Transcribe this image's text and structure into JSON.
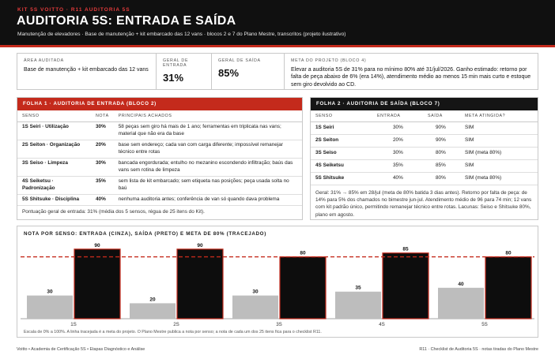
{
  "header": {
    "kicker_left": "KIT 5S VOITTO",
    "kicker_right": "R11 AUDITORIA 5S",
    "title": "AUDITORIA 5S: ENTRADA E SAÍDA",
    "subtitle": "Manutenção de elevadores · Base de manutenção + kit embarcado das 12 vans · blocos 2 e 7 do Plano Mestre, transcritos (projeto ilustrativo)"
  },
  "info": {
    "area_label": "ÁREA AUDITADA",
    "area_value": "Base de manutenção + kit embarcado das 12 vans",
    "entry_label": "GERAL DE ENTRADA",
    "entry_value": "31%",
    "exit_label": "GERAL DE SAÍDA",
    "exit_value": "85%",
    "goal_label": "META DO PROJETO (BLOCO 4)",
    "goal_value": "Elevar a auditoria 5S de 31% para no mínimo 80% até 31/jul/2026. Ganho estimado: retorno por falta de peça abaixo de 6% (era 14%), atendimento médio ao menos 15 min mais curto e estoque sem giro devolvido ao CD."
  },
  "sheet1": {
    "title": "FOLHA 1 · AUDITORIA DE ENTRADA (BLOCO 2)",
    "headers": [
      "SENSO",
      "NOTA",
      "PRINCIPAIS ACHADOS"
    ],
    "rows": [
      {
        "senso": "1S Seiri · Utilização",
        "nota": "30%",
        "achado": "58 peças sem giro há mais de 1 ano; ferramentas em triplicata nas vans; material que não era da base"
      },
      {
        "senso": "2S Seiton · Organização",
        "nota": "20%",
        "achado": "base sem endereço; cada van com carga diferente; impossível remanejar técnico entre rotas"
      },
      {
        "senso": "3S Seiso · Limpeza",
        "nota": "30%",
        "achado": "bancada engordurada; entulho no mezanino escondendo infiltração; baús das vans sem rotina de limpeza"
      },
      {
        "senso": "4S Seiketsu · Padronização",
        "nota": "35%",
        "achado": "sem lista de kit embarcado; sem etiqueta nas posições; peça usada solta no baú"
      },
      {
        "senso": "5S Shitsuke · Disciplina",
        "nota": "40%",
        "achado": "nenhuma auditoria antes; conferência de van só quando dava problema"
      }
    ],
    "note": "Pontuação geral de entrada: 31% (média dos 5 sensos, régua de 25 itens do Kit)."
  },
  "sheet2": {
    "title": "FOLHA 2 · AUDITORIA DE SAÍDA (BLOCO 7)",
    "headers": [
      "SENSO",
      "ENTRADA",
      "SAÍDA",
      "META ATINGIDA?"
    ],
    "rows": [
      {
        "senso": "1S Seiri",
        "entrada": "30%",
        "saida": "90%",
        "meta": "SIM"
      },
      {
        "senso": "2S Seiton",
        "entrada": "20%",
        "saida": "90%",
        "meta": "SIM"
      },
      {
        "senso": "3S Seiso",
        "entrada": "30%",
        "saida": "80%",
        "meta": "SIM (meta 80%)"
      },
      {
        "senso": "4S Seiketsu",
        "entrada": "35%",
        "saida": "85%",
        "meta": "SIM"
      },
      {
        "senso": "5S Shitsuke",
        "entrada": "40%",
        "saida": "80%",
        "meta": "SIM (meta 80%)"
      }
    ],
    "note": "Geral: 31% → 85% em 28/jul (meta de 80% batida 3 dias antes). Retorno por falta de peça: de 14% para 5% dos chamados no bimestre jun-jul. Atendimento médio de 96 para 74 min; 12 vans com kit padrão único, permitindo remanejar técnico entre rotas. Lacunas: Seiso e Shitsuke 80%, plano em agosto."
  },
  "chart_data": {
    "type": "bar",
    "title": "NOTA POR SENSO: ENTRADA (CINZA), SAÍDA (PRETO) E META DE 80% (TRACEJADO)",
    "categories": [
      "1S",
      "2S",
      "3S",
      "4S",
      "5S"
    ],
    "series": [
      {
        "name": "ENTRADA",
        "values": [
          30,
          20,
          30,
          35,
          40
        ],
        "color": "#bdbdbd"
      },
      {
        "name": "SAÍDA",
        "values": [
          90,
          90,
          80,
          85,
          80
        ],
        "color": "#0d0d0d"
      }
    ],
    "target": 80,
    "target_color": "#c42a1c",
    "ylim": [
      0,
      100
    ],
    "border_color": "#c42a1c",
    "footnote": "Escala de 0% a 100%. A linha tracejada é a meta do projeto. O Plano Mestre publica a nota por senso; a nota de cada um dos 25 itens fica para o checklist R11."
  },
  "footer": {
    "left": "Voitto • Academia de Certificação 5S • Etapas Diagnóstico e Análise",
    "right": "R11 · Checklist de Auditoria 5S · notas tiradas do Plano Mestre"
  },
  "colors": {
    "accent_red": "#c42a1c",
    "header_dark": "#101010",
    "panel2_header": "#151515"
  }
}
